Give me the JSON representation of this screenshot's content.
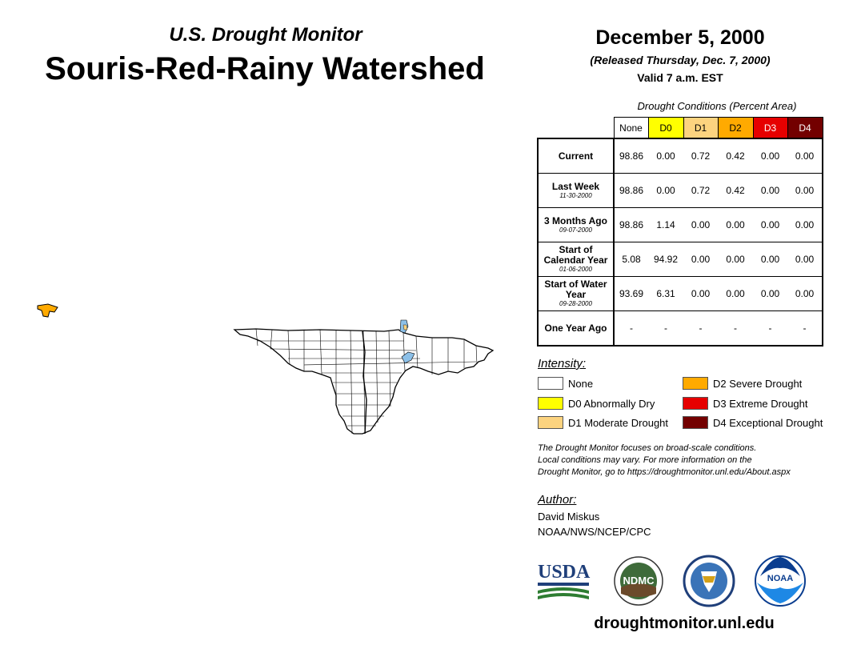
{
  "header": {
    "subtitle": "U.S. Drought Monitor",
    "title": "Souris-Red-Rainy Watershed"
  },
  "date_block": {
    "date": "December 5, 2000",
    "released": "(Released Thursday, Dec. 7, 2000)",
    "valid": "Valid 7 a.m. EST"
  },
  "table": {
    "caption": "Drought Conditions (Percent Area)",
    "columns": [
      "None",
      "D0",
      "D1",
      "D2",
      "D3",
      "D4"
    ],
    "rows": [
      {
        "label": "Current",
        "date": "",
        "values": [
          "98.86",
          "0.00",
          "0.72",
          "0.42",
          "0.00",
          "0.00"
        ]
      },
      {
        "label": "Last Week",
        "date": "11-30-2000",
        "values": [
          "98.86",
          "0.00",
          "0.72",
          "0.42",
          "0.00",
          "0.00"
        ]
      },
      {
        "label": "3 Months Ago",
        "date": "09-07-2000",
        "values": [
          "98.86",
          "1.14",
          "0.00",
          "0.00",
          "0.00",
          "0.00"
        ]
      },
      {
        "label": "Start of Calendar Year",
        "date": "01-06-2000",
        "values": [
          "5.08",
          "94.92",
          "0.00",
          "0.00",
          "0.00",
          "0.00"
        ]
      },
      {
        "label": "Start of Water Year",
        "date": "09-28-2000",
        "values": [
          "93.69",
          "6.31",
          "0.00",
          "0.00",
          "0.00",
          "0.00"
        ]
      },
      {
        "label": "One Year Ago",
        "date": "",
        "values": [
          "-",
          "-",
          "-",
          "-",
          "-",
          "-"
        ]
      }
    ]
  },
  "legend": {
    "title": "Intensity:",
    "items": [
      {
        "label": "None",
        "color": "#ffffff"
      },
      {
        "label": "D0 Abnormally Dry",
        "color": "#ffff00"
      },
      {
        "label": "D1 Moderate Drought",
        "color": "#fcd37f"
      },
      {
        "label": "D2 Severe Drought",
        "color": "#ffaa00"
      },
      {
        "label": "D3 Extreme Drought",
        "color": "#e60000"
      },
      {
        "label": "D4 Exceptional Drought",
        "color": "#730000"
      }
    ]
  },
  "note": {
    "line1": "The Drought Monitor focuses on broad-scale conditions.",
    "line2": "Local conditions may vary. For more information on the",
    "line3": "Drought Monitor, go to https://droughtmonitor.unl.edu/About.aspx"
  },
  "author": {
    "title": "Author:",
    "name": "David Miskus",
    "org": "NOAA/NWS/NCEP/CPC"
  },
  "logos": {
    "usda": "USDA",
    "ndmc": "NDMC",
    "noaa": "NOAA"
  },
  "url": "droughtmonitor.unl.edu",
  "colors": {
    "water": "#8cc0e8",
    "map_outline": "#000000"
  }
}
